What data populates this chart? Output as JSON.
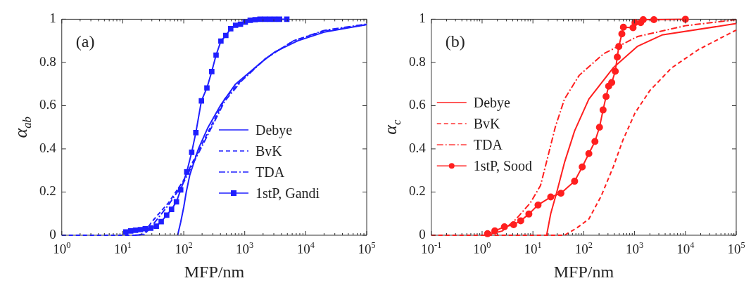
{
  "chart_data": [
    {
      "type": "line",
      "xlabel": "MFP/nm",
      "ylabel": "α$_{ab}$",
      "log": "x",
      "xlim": [
        1,
        100000
      ],
      "ylim": [
        0,
        1
      ],
      "xticks": [
        {
          "value": 1,
          "label": "10$^{0}$"
        },
        {
          "value": 10,
          "label": "10$^{1}$"
        },
        {
          "value": 100,
          "label": "10$^{2}$"
        },
        {
          "value": 1000,
          "label": "10$^{3}$"
        },
        {
          "value": 10000,
          "label": "10$^{4}$"
        },
        {
          "value": 100000,
          "label": "10$^{5}$"
        }
      ],
      "yticks": [
        0,
        0.2,
        0.4,
        0.6,
        0.8,
        1
      ],
      "legend": "bottom right",
      "annotations": [
        "(a)"
      ],
      "series": [
        {
          "name": "Debye",
          "color": "#1f1fff",
          "line_style": "solid",
          "marker": "none",
          "x": [
            79.4,
            89.1,
            100,
            110,
            126,
            174,
            251,
            398,
            708,
            1860,
            3160,
            7410,
            20000,
            100000
          ],
          "values": [
            0,
            0.06,
            0.13,
            0.2,
            0.28,
            0.4,
            0.5,
            0.6,
            0.7,
            0.8,
            0.85,
            0.9,
            0.94,
            0.975
          ]
        },
        {
          "name": "BvK",
          "color": "#1f1fff",
          "line_style": "dashed",
          "marker": "none",
          "x": [
            1,
            15.8,
            22.4,
            29.5,
            56.2,
            97.7,
            141,
            224,
            468,
            891,
            2240,
            6310,
            20000,
            100000
          ],
          "values": [
            0,
            0,
            0.005,
            0.06,
            0.15,
            0.25,
            0.34,
            0.45,
            0.63,
            0.72,
            0.82,
            0.9,
            0.945,
            0.975
          ]
        },
        {
          "name": "TDA",
          "color": "#1f1fff",
          "line_style": "dashdot",
          "marker": "none",
          "x": [
            15.8,
            22.4,
            29.5,
            56.2,
            97.7,
            141,
            224,
            468,
            891,
            2240,
            6310,
            20000,
            100000
          ],
          "values": [
            0,
            0.003,
            0.04,
            0.14,
            0.24,
            0.33,
            0.44,
            0.62,
            0.715,
            0.82,
            0.9,
            0.948,
            0.978
          ]
        },
        {
          "name": "1stP, Gandi",
          "color": "#1f1fff",
          "line_style": "solid",
          "marker": "square",
          "x": [
            11.2,
            13.5,
            16.2,
            19.5,
            23.4,
            28.8,
            35.5,
            42.7,
            52.5,
            63.1,
            75.9,
            89.1,
            112,
            135,
            158,
            195,
            240,
            288,
            339,
            407,
            490,
            589,
            708,
            851,
            1020,
            1230,
            1480,
            1780,
            2140,
            2570,
            3090,
            3720,
            4900
          ],
          "values": [
            0.015,
            0.02,
            0.023,
            0.026,
            0.03,
            0.033,
            0.042,
            0.063,
            0.093,
            0.12,
            0.155,
            0.21,
            0.293,
            0.384,
            0.475,
            0.622,
            0.682,
            0.758,
            0.834,
            0.899,
            0.925,
            0.956,
            0.972,
            0.977,
            0.987,
            0.995,
            0.998,
            1,
            1,
            1,
            1,
            1,
            1
          ]
        }
      ]
    },
    {
      "type": "line",
      "xlabel": "MFP/nm",
      "ylabel": "α$_{c}$",
      "log": "x",
      "xlim": [
        0.1,
        100000
      ],
      "ylim": [
        0,
        1
      ],
      "xticks": [
        {
          "value": 0.1,
          "label": "10$^{-1}$"
        },
        {
          "value": 1,
          "label": "10$^{0}$"
        },
        {
          "value": 10,
          "label": "10$^{1}$"
        },
        {
          "value": 100,
          "label": "10$^{2}$"
        },
        {
          "value": 1000,
          "label": "10$^{3}$"
        },
        {
          "value": 10000,
          "label": "10$^{4}$"
        },
        {
          "value": 100000,
          "label": "10$^{5}$"
        }
      ],
      "yticks": [
        0,
        0.2,
        0.4,
        0.6,
        0.8,
        1
      ],
      "legend": "left",
      "annotations": [
        "(b)"
      ],
      "series": [
        {
          "name": "Debye",
          "color": "#ff1f1f",
          "line_style": "solid",
          "marker": "none",
          "x": [
            18.6,
            22.4,
            29.5,
            41.7,
            66.1,
            126,
            380,
            1150,
            3470,
            100000
          ],
          "values": [
            0,
            0.1,
            0.2,
            0.336,
            0.483,
            0.63,
            0.775,
            0.875,
            0.927,
            0.98
          ]
        },
        {
          "name": "BvK",
          "color": "#ff1f1f",
          "line_style": "dashed",
          "marker": "none",
          "x": [
            0.1,
            41.7,
            72.4,
            126,
            219,
            380,
            589,
            1020,
            2000,
            5370,
            18200,
            100000
          ],
          "values": [
            0,
            0,
            0.033,
            0.075,
            0.18,
            0.316,
            0.44,
            0.566,
            0.67,
            0.775,
            0.86,
            0.95
          ]
        },
        {
          "name": "TDA",
          "color": "#ff1f1f",
          "line_style": "dashdot",
          "marker": "none",
          "x": [
            1.23,
            2.51,
            4.68,
            8.91,
            14.1,
            19.5,
            27.5,
            41.7,
            81.3,
            245,
            1150,
            10000,
            100000
          ],
          "values": [
            0,
            0.02,
            0.075,
            0.15,
            0.23,
            0.36,
            0.5,
            0.63,
            0.74,
            0.84,
            0.92,
            0.97,
            0.998
          ]
        },
        {
          "name": "1stP, Sood",
          "color": "#ff1f1f",
          "line_style": "solid",
          "marker": "circle",
          "x": [
            1.28,
            1.78,
            2.75,
            4.17,
            5.75,
            8.32,
            12.6,
            22.4,
            35.5,
            66.1,
            93.3,
            126,
            166,
            204,
            240,
            275,
            309,
            355,
            417,
            457,
            490,
            562,
            603,
            933,
            1020,
            1320,
            1480,
            2400,
            10000
          ],
          "values": [
            0.007,
            0.02,
            0.039,
            0.049,
            0.067,
            0.098,
            0.14,
            0.177,
            0.194,
            0.25,
            0.316,
            0.378,
            0.434,
            0.5,
            0.58,
            0.642,
            0.69,
            0.707,
            0.759,
            0.825,
            0.874,
            0.932,
            0.963,
            0.961,
            0.984,
            0.984,
            0.998,
            0.998,
            1
          ]
        }
      ]
    }
  ]
}
